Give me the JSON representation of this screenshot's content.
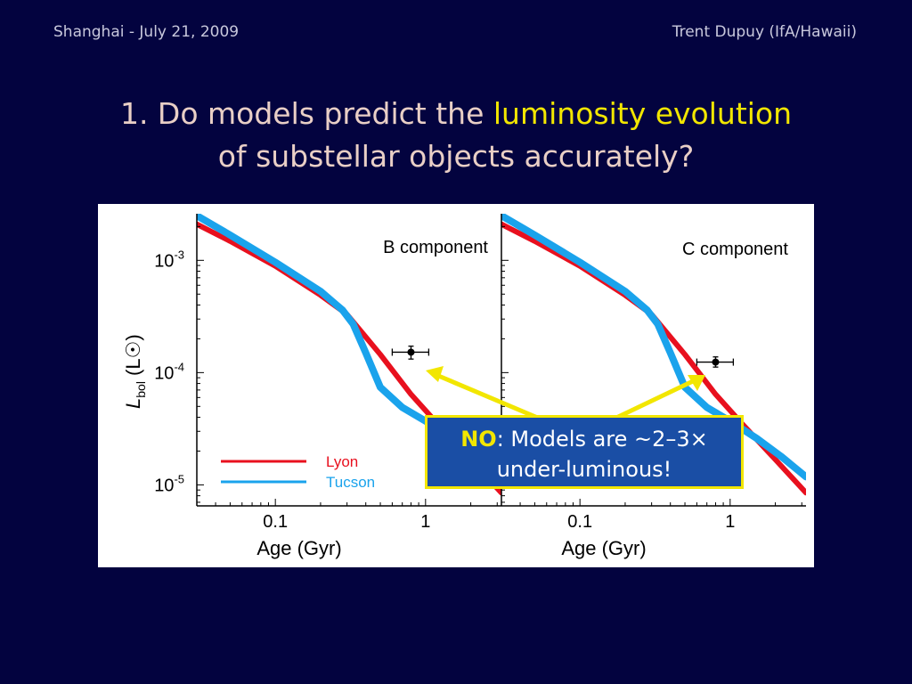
{
  "header": {
    "left": "Shanghai - July 21, 2009",
    "right": "Trent Dupuy (IfA/Hawaii)"
  },
  "title": {
    "line1_prefix": "1. Do models predict the ",
    "line1_highlight": "luminosity evolution",
    "line2": "of substellar objects accurately?"
  },
  "callout": {
    "bold": "NO",
    "text1": ": Models are ~2–3×",
    "text2": "under-luminous!"
  },
  "colors": {
    "background": "#03033f",
    "lyon": "#e8101e",
    "tucson": "#1aa3ec",
    "highlight": "#f2e600",
    "callout_bg": "#1a4ea5"
  },
  "chart_data": [
    {
      "type": "line",
      "panel_label": "B component",
      "xlabel": "Age (Gyr)",
      "ylabel": "L_bol (L☉)",
      "ylabel_parts": {
        "main": "L",
        "sub": "bol",
        "unit": " (L",
        "sun": "☉",
        "close": ")"
      },
      "x_scale": "log",
      "y_scale": "log",
      "xlim": [
        0.03,
        3.2
      ],
      "ylim": [
        6.5e-06,
        0.0026
      ],
      "x_ticks": [
        {
          "value": 0.1,
          "label": "0.1"
        },
        {
          "value": 1,
          "label": "1"
        }
      ],
      "y_ticks": [
        {
          "value": 0.001,
          "base": "10",
          "exp": "-3"
        },
        {
          "value": 0.0001,
          "base": "10",
          "exp": "-4"
        },
        {
          "value": 1e-05,
          "base": "10",
          "exp": "-5"
        }
      ],
      "legend": [
        {
          "name": "Lyon",
          "color": "#e8101e"
        },
        {
          "name": "Tucson",
          "color": "#1aa3ec"
        }
      ],
      "series": [
        {
          "name": "Lyon",
          "color": "#e8101e",
          "x": [
            0.03,
            0.05,
            0.1,
            0.2,
            0.3,
            0.5,
            0.8,
            1.2,
            2.0,
            3.2
          ],
          "y": [
            0.0021,
            0.00148,
            0.00089,
            0.00049,
            0.00033,
            0.000145,
            6.4e-05,
            3.5e-05,
            1.68e-05,
            8.5e-06
          ]
        },
        {
          "name": "Tucson",
          "color": "#1aa3ec",
          "x": [
            0.03,
            0.05,
            0.1,
            0.2,
            0.28,
            0.33,
            0.4,
            0.5,
            0.7,
            1.0,
            1.5,
            2.2,
            3.2
          ],
          "y": [
            0.0025,
            0.00168,
            0.00096,
            0.00053,
            0.00036,
            0.00027,
            0.00015,
            7.4e-05,
            4.9e-05,
            3.7e-05,
            2.6e-05,
            1.78e-05,
            1.18e-05
          ]
        }
      ],
      "data_point": {
        "x": 0.8,
        "y": 0.000152,
        "x_err": [
          0.6,
          1.05
        ],
        "y_err": [
          0.000132,
          0.000172
        ]
      }
    },
    {
      "type": "line",
      "panel_label": "C component",
      "xlabel": "Age (Gyr)",
      "x_scale": "log",
      "y_scale": "log",
      "xlim": [
        0.03,
        3.2
      ],
      "ylim": [
        6.5e-06,
        0.0026
      ],
      "x_ticks": [
        {
          "value": 0.1,
          "label": "0.1"
        },
        {
          "value": 1,
          "label": "1"
        }
      ],
      "series": [
        {
          "name": "Lyon",
          "color": "#e8101e",
          "x": [
            0.03,
            0.05,
            0.1,
            0.2,
            0.3,
            0.5,
            0.8,
            1.2,
            2.0,
            3.2
          ],
          "y": [
            0.0021,
            0.00148,
            0.00089,
            0.00049,
            0.00033,
            0.000145,
            6.4e-05,
            3.5e-05,
            1.68e-05,
            8.5e-06
          ]
        },
        {
          "name": "Tucson",
          "color": "#1aa3ec",
          "x": [
            0.03,
            0.05,
            0.1,
            0.2,
            0.28,
            0.33,
            0.4,
            0.5,
            0.7,
            1.0,
            1.5,
            2.2,
            3.2
          ],
          "y": [
            0.0025,
            0.00168,
            0.00096,
            0.00053,
            0.00036,
            0.00027,
            0.00015,
            7.4e-05,
            4.9e-05,
            3.7e-05,
            2.6e-05,
            1.78e-05,
            1.18e-05
          ]
        }
      ],
      "data_point": {
        "x": 0.8,
        "y": 0.000124,
        "x_err": [
          0.6,
          1.05
        ],
        "y_err": [
          0.000112,
          0.000138
        ]
      }
    }
  ]
}
